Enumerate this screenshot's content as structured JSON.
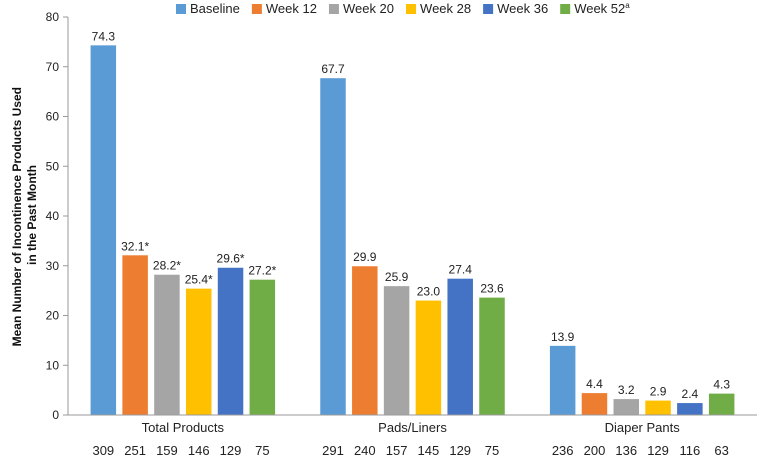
{
  "chart_data": {
    "type": "bar",
    "title": "",
    "ylabel_line1": "Mean Number of Incontinence Products Used",
    "ylabel_line2": "in the Past Month",
    "xlabel": "",
    "ylim": [
      0,
      80
    ],
    "yticks": [
      0,
      10,
      20,
      30,
      40,
      50,
      60,
      70,
      80
    ],
    "categories": [
      "Total Products",
      "Pads/Liners",
      "Diaper Pants"
    ],
    "legend_position": "top",
    "series": [
      {
        "name": "Baseline",
        "sup": "",
        "color": "#5b9bd5",
        "values": [
          74.3,
          67.7,
          13.9
        ],
        "labels": [
          "74.3",
          "67.7",
          "13.9"
        ],
        "n": [
          "309",
          "291",
          "236"
        ]
      },
      {
        "name": "Week 12",
        "sup": "",
        "color": "#ed7d31",
        "values": [
          32.1,
          29.9,
          4.4
        ],
        "labels": [
          "32.1*",
          "29.9",
          "4.4"
        ],
        "n": [
          "251",
          "240",
          "200"
        ]
      },
      {
        "name": "Week 20",
        "sup": "",
        "color": "#a5a5a5",
        "values": [
          28.2,
          25.9,
          3.2
        ],
        "labels": [
          "28.2*",
          "25.9",
          "3.2"
        ],
        "n": [
          "159",
          "157",
          "136"
        ]
      },
      {
        "name": "Week 28",
        "sup": "",
        "color": "#ffc000",
        "values": [
          25.4,
          23.0,
          2.9
        ],
        "labels": [
          "25.4*",
          "23.0",
          "2.9"
        ],
        "n": [
          "146",
          "145",
          "129"
        ]
      },
      {
        "name": "Week 36",
        "sup": "",
        "color": "#4472c4",
        "values": [
          29.6,
          27.4,
          2.4
        ],
        "labels": [
          "29.6*",
          "27.4",
          "2.4"
        ],
        "n": [
          "129",
          "129",
          "116"
        ]
      },
      {
        "name": "Week 52",
        "sup": "a",
        "color": "#70ad47",
        "values": [
          27.2,
          23.6,
          4.3
        ],
        "labels": [
          "27.2*",
          "23.6",
          "4.3"
        ],
        "n": [
          "75",
          "75",
          "63"
        ]
      }
    ]
  }
}
